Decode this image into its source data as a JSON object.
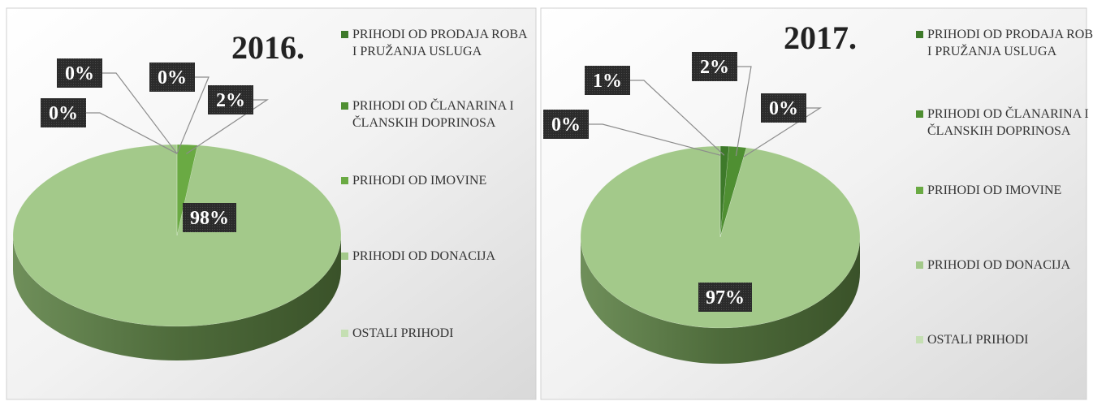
{
  "chart_data": [
    {
      "type": "pie",
      "title": "2016.",
      "categories": [
        "PRIHODI OD PRODAJA ROBA I PRUŽANJA USLUGA",
        "PRIHODI OD ČLANARINA I ČLANSKIH DOPRINOSA",
        "PRIHODI OD IMOVINE",
        "PRIHODI OD DONACIJA",
        "OSTALI PRIHODI"
      ],
      "values": [
        0,
        0,
        2,
        98,
        0
      ],
      "value_labels": [
        "0%",
        "0%",
        "2%",
        "98%",
        "0%"
      ],
      "colors": [
        "#3e7a2a",
        "#4f8f32",
        "#6aaa43",
        "#a3c98a",
        "#c5dfb3"
      ]
    },
    {
      "type": "pie",
      "title": "2017.",
      "categories": [
        "PRIHODI OD PRODAJA ROBA I PRUŽANJA USLUGA",
        "PRIHODI OD ČLANARINA I ČLANSKIH DOPRINOSA",
        "PRIHODI OD IMOVINE",
        "PRIHODI OD DONACIJA",
        "OSTALI PRIHODI"
      ],
      "values": [
        1,
        2,
        0,
        97,
        0
      ],
      "value_labels": [
        "1%",
        "2%",
        "0%",
        "97%",
        "0%"
      ],
      "colors": [
        "#3e7a2a",
        "#4f8f32",
        "#6aaa43",
        "#a3c98a",
        "#c5dfb3"
      ]
    }
  ]
}
